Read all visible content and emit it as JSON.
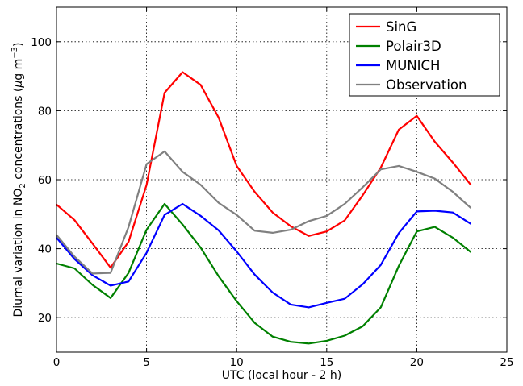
{
  "chart_data": {
    "type": "line",
    "xlabel": "UTC (local hour - 2 h)",
    "ylabel": {
      "prefix": "Diurnal variation in NO",
      "sub": "2",
      "mid": " concentrations (",
      "mu": "μ",
      "unit": "g m",
      "sup": "−3",
      "suffix": ")"
    },
    "xlim": [
      0,
      25
    ],
    "ylim": [
      10,
      110
    ],
    "xticks": [
      0,
      5,
      10,
      15,
      20,
      25
    ],
    "yticks": [
      20,
      40,
      60,
      80,
      100
    ],
    "grid": true,
    "legend_position": "top-right",
    "x": [
      0,
      1,
      2,
      3,
      4,
      5,
      6,
      7,
      8,
      9,
      10,
      11,
      12,
      13,
      14,
      15,
      16,
      17,
      18,
      19,
      20,
      21,
      22,
      23
    ],
    "series": [
      {
        "name": "SinG",
        "color": "#ff0000",
        "values": [
          52.8,
          48.3,
          41.5,
          34.5,
          42.0,
          58.5,
          85.2,
          91.2,
          87.5,
          78.0,
          64.0,
          56.5,
          50.5,
          46.5,
          43.7,
          45.0,
          48.2,
          55.5,
          63.5,
          74.5,
          78.5,
          71.0,
          65.0,
          58.5
        ]
      },
      {
        "name": "Polair3D",
        "color": "#008000",
        "values": [
          35.7,
          34.3,
          29.5,
          25.7,
          33.0,
          45.5,
          53.0,
          47.0,
          40.3,
          32.0,
          24.8,
          18.5,
          14.5,
          13.0,
          12.5,
          13.3,
          14.8,
          17.5,
          23.0,
          35.0,
          45.0,
          46.3,
          43.2,
          39.0
        ]
      },
      {
        "name": "MUNICH",
        "color": "#0000ff",
        "values": [
          43.2,
          37.0,
          32.3,
          29.3,
          30.5,
          38.8,
          49.8,
          53.0,
          49.5,
          45.3,
          39.2,
          32.5,
          27.3,
          23.8,
          23.0,
          24.3,
          25.5,
          29.7,
          35.3,
          44.5,
          50.8,
          51.0,
          50.5,
          47.2
        ]
      },
      {
        "name": "Observation",
        "color": "#808080",
        "values": [
          44.0,
          37.7,
          32.8,
          33.0,
          46.3,
          64.5,
          68.2,
          62.3,
          58.5,
          53.3,
          49.8,
          45.2,
          44.6,
          45.5,
          48.0,
          49.5,
          53.0,
          57.8,
          63.0,
          64.0,
          62.3,
          60.3,
          56.5,
          51.8
        ]
      }
    ]
  }
}
